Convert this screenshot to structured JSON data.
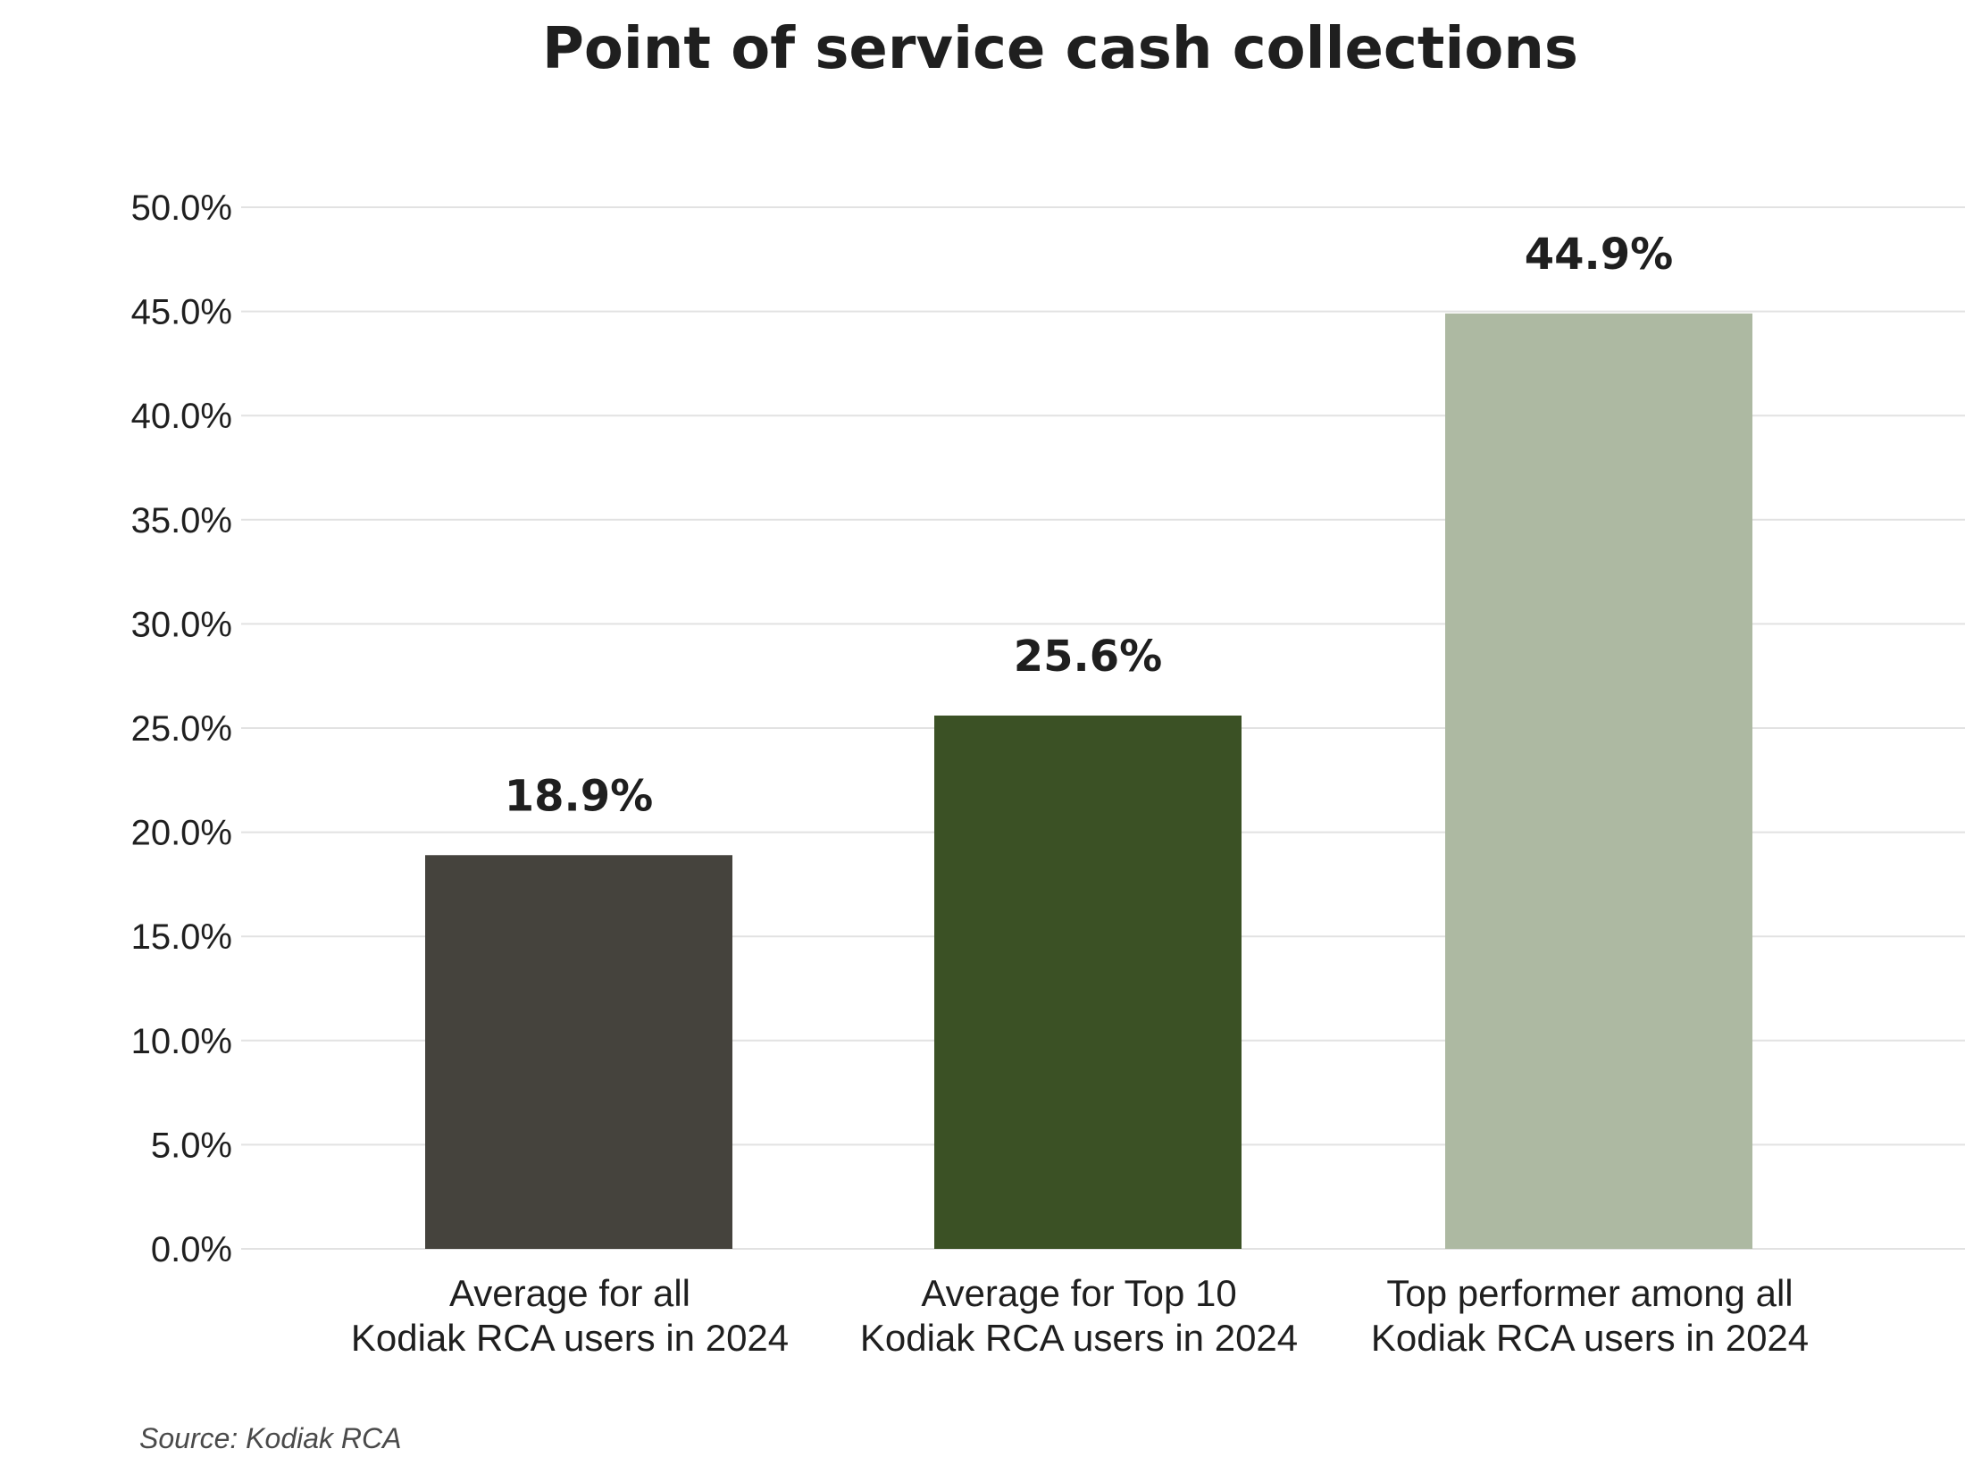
{
  "chart_data": {
    "type": "bar",
    "title": "Point of service cash collections",
    "categories": [
      [
        "Average for all",
        "Kodiak RCA users in 2024"
      ],
      [
        "Average for Top 10",
        "Kodiak RCA users in 2024"
      ],
      [
        "Top performer among all",
        "Kodiak RCA users in 2024"
      ]
    ],
    "values": [
      18.9,
      25.6,
      44.9
    ],
    "data_labels": [
      "18.9%",
      "25.6%",
      "44.9%"
    ],
    "bar_colors": [
      "#45433d",
      "#3b5125",
      "#adb9a2"
    ],
    "xlabel": "",
    "ylabel": "",
    "ylim": [
      0,
      50
    ],
    "yticks": [
      "0.0%",
      "5.0%",
      "10.0%",
      "15.0%",
      "20.0%",
      "25.0%",
      "30.0%",
      "35.0%",
      "40.0%",
      "45.0%",
      "50.0%"
    ],
    "grid": true,
    "legend": "none"
  },
  "source": "Source: Kodiak RCA"
}
